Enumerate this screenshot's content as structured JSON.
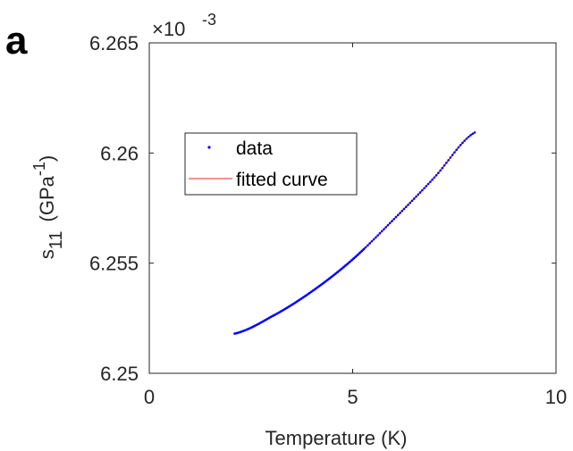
{
  "panel_label": "a",
  "colors": {
    "data": "#0000ff",
    "fit": "#e3261a",
    "axis": "#262626"
  },
  "chart_data": {
    "type": "line",
    "xlabel": "Temperature (K)",
    "ylabel": {
      "base": "s",
      "sub": "11",
      "unit_open": "(GPa",
      "unit_sup": "-1",
      "unit_close": ")"
    },
    "y_exponent": {
      "prefix": "×10",
      "power": "-3"
    },
    "xlim": [
      0,
      10
    ],
    "ylim": [
      6.25,
      6.265
    ],
    "x_ticks": [
      0,
      5,
      10
    ],
    "x_tick_labels": [
      "0",
      "5",
      "10"
    ],
    "y_ticks": [
      6.25,
      6.255,
      6.26,
      6.265
    ],
    "y_tick_labels": [
      "6.25",
      "6.255",
      "6.26",
      "6.265"
    ],
    "y_scale_factor": 0.001,
    "grid": false,
    "legend": {
      "position": "upper-left",
      "entries": [
        "data",
        "fitted curve"
      ]
    },
    "series": [
      {
        "name": "data",
        "style": "markers",
        "x_range": [
          2.1,
          8.0
        ],
        "n_points": 120
      },
      {
        "name": "fitted curve",
        "style": "line",
        "x_range": [
          2.1,
          8.0
        ],
        "n_points": 120
      }
    ],
    "curve_samples": {
      "x": [
        2.1,
        3.0,
        4.0,
        5.0,
        6.0,
        7.0,
        8.0
      ],
      "y": [
        6.2518,
        6.25257,
        6.25372,
        6.25517,
        6.25697,
        6.25887,
        6.26093
      ]
    }
  }
}
